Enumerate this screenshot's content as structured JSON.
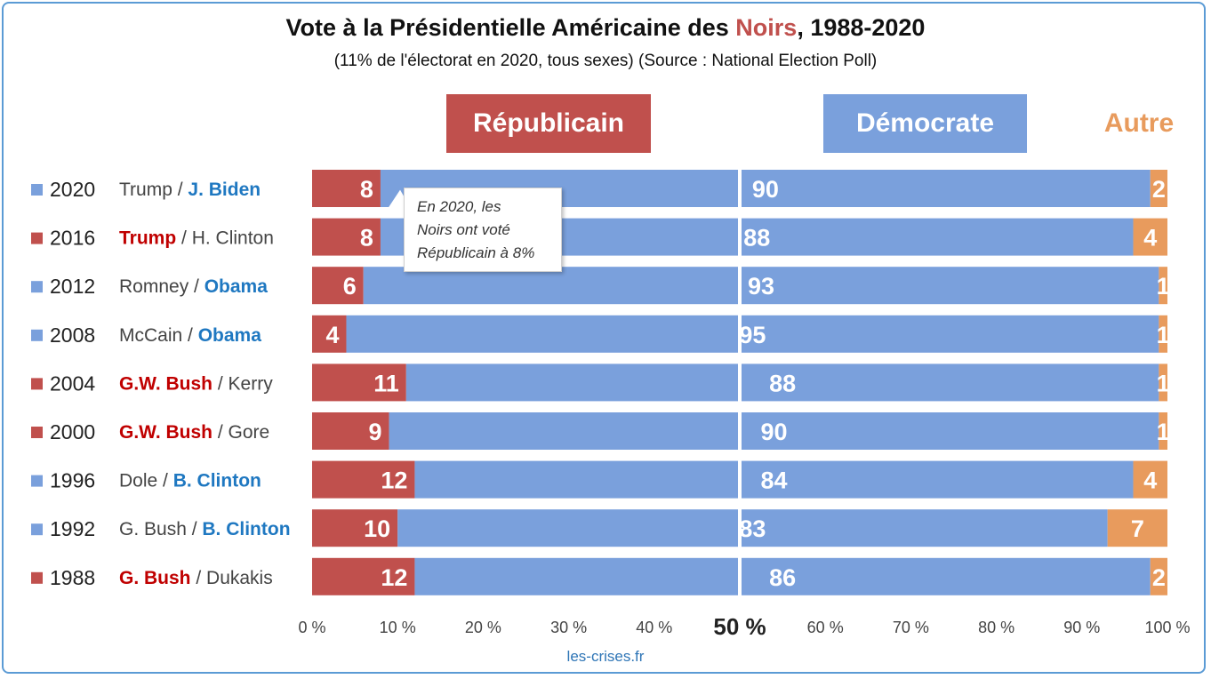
{
  "header": {
    "title_prefix": "Vote à la Présidentielle Américaine des ",
    "title_highlight": "Noirs",
    "title_suffix": ", 1988-2020",
    "subtitle": "(11% de l'électorat en 2020, tous sexes) (Source : National Election Poll)"
  },
  "legend": {
    "republican": "Républicain",
    "democrat": "Démocrate",
    "other": "Autre"
  },
  "callout": {
    "line1": "En 2020, les",
    "line2": "Noirs ont voté",
    "line3": "Républicain à 8%"
  },
  "footer": "les-crises.fr",
  "colors": {
    "republican": "#c0504d",
    "democrat": "#7aa0dc",
    "other": "#e89b5d",
    "rep_name": "#c00000",
    "dem_name": "#1f78c1",
    "plain_name": "#444444"
  },
  "chart_data": {
    "type": "bar",
    "orientation": "horizontal",
    "stacked": true,
    "xlim": [
      0,
      100
    ],
    "x_ticks": [
      "0 %",
      "10 %",
      "20 %",
      "30 %",
      "40 %",
      "50 %",
      "60 %",
      "70 %",
      "80 %",
      "90 %",
      "100 %"
    ],
    "rows": [
      {
        "year": "2020",
        "winner": "dem",
        "rep_candidate": "Trump",
        "dem_candidate": "J. Biden",
        "republican": 8,
        "democrat": 90,
        "other": 2
      },
      {
        "year": "2016",
        "winner": "rep",
        "rep_candidate": "Trump",
        "dem_candidate": "H. Clinton",
        "republican": 8,
        "democrat": 88,
        "other": 4
      },
      {
        "year": "2012",
        "winner": "dem",
        "rep_candidate": "Romney",
        "dem_candidate": "Obama",
        "republican": 6,
        "democrat": 93,
        "other": 1
      },
      {
        "year": "2008",
        "winner": "dem",
        "rep_candidate": "McCain",
        "dem_candidate": "Obama",
        "republican": 4,
        "democrat": 95,
        "other": 1
      },
      {
        "year": "2004",
        "winner": "rep",
        "rep_candidate": "G.W. Bush",
        "dem_candidate": "Kerry",
        "republican": 11,
        "democrat": 88,
        "other": 1
      },
      {
        "year": "2000",
        "winner": "rep",
        "rep_candidate": "G.W. Bush",
        "dem_candidate": "Gore",
        "republican": 9,
        "democrat": 90,
        "other": 1
      },
      {
        "year": "1996",
        "winner": "dem",
        "rep_candidate": "Dole",
        "dem_candidate": "B. Clinton",
        "republican": 12,
        "democrat": 84,
        "other": 4
      },
      {
        "year": "1992",
        "winner": "dem",
        "rep_candidate": "G. Bush",
        "dem_candidate": "B. Clinton",
        "republican": 10,
        "democrat": 83,
        "other": 7
      },
      {
        "year": "1988",
        "winner": "rep",
        "rep_candidate": "G. Bush",
        "dem_candidate": "Dukakis",
        "republican": 12,
        "democrat": 86,
        "other": 2
      }
    ]
  }
}
